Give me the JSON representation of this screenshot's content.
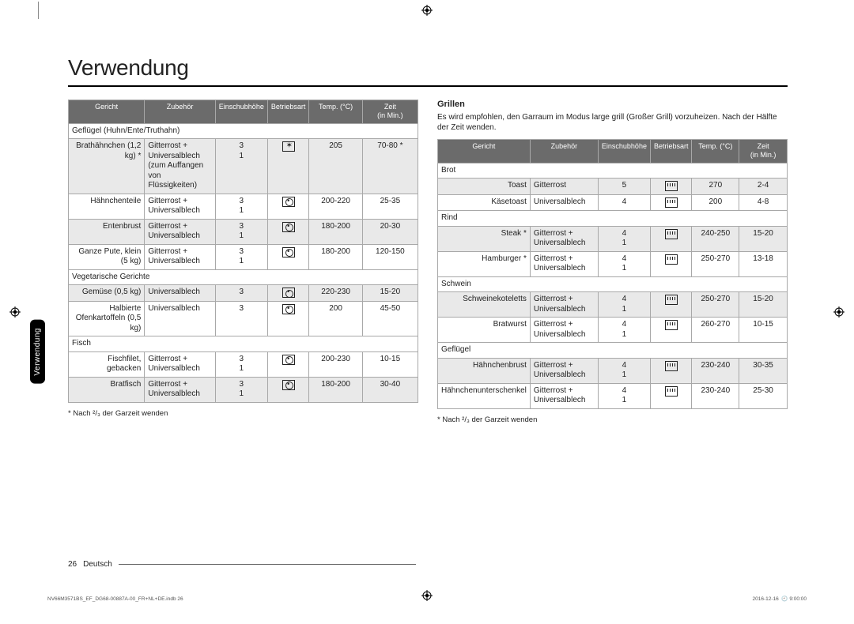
{
  "title": "Verwendung",
  "side_tab": "Verwendung",
  "page_num": "26",
  "page_lang": "Deutsch",
  "print_left": "NV66M3571BS_EF_DG68-00887A-00_FR+NL+DE.indb   26",
  "print_right_date": "2016-12-16",
  "print_right_time": "9:00:00",
  "footnote": "* Nach ²/₃ der Garzeit wenden",
  "headers": {
    "dish": "Gericht",
    "acc": "Zubehör",
    "level": "Einschubhöhe",
    "mode": "Betriebsart",
    "temp": "Temp. (°C)",
    "time": "Zeit",
    "time2": "(in Min.)"
  },
  "left": {
    "sections": [
      {
        "label": "Geflügel (Huhn/Ente/Truthahn)",
        "rows": [
          {
            "alt": true,
            "dish": "Brathähnchen (1,2 kg) *",
            "acc": "Gitterrost + Universalblech (zum Auffangen von Flüssigkeiten)",
            "lvl": "3\n1",
            "mode": "special",
            "temp": "205",
            "time": "70-80 *"
          },
          {
            "alt": false,
            "dish": "Hähnchenteile",
            "acc": "Gitterrost + Universalblech",
            "lvl": "3\n1",
            "mode": "fan",
            "temp": "200-220",
            "time": "25-35"
          },
          {
            "alt": true,
            "dish": "Entenbrust",
            "acc": "Gitterrost + Universalblech",
            "lvl": "3\n1",
            "mode": "fan",
            "temp": "180-200",
            "time": "20-30"
          },
          {
            "alt": false,
            "dish": "Ganze Pute, klein (5 kg)",
            "acc": "Gitterrost + Universalblech",
            "lvl": "3\n1",
            "mode": "fan",
            "temp": "180-200",
            "time": "120-150"
          }
        ]
      },
      {
        "label": "Vegetarische Gerichte",
        "rows": [
          {
            "alt": true,
            "dish": "Gemüse (0,5 kg)",
            "acc": "Universalblech",
            "lvl": "3",
            "mode": "fan",
            "temp": "220-230",
            "time": "15-20"
          },
          {
            "alt": false,
            "dish": "Halbierte Ofenkartoffeln (0,5 kg)",
            "acc": "Universalblech",
            "lvl": "3",
            "mode": "fan",
            "temp": "200",
            "time": "45-50"
          }
        ]
      },
      {
        "label": "Fisch",
        "rows": [
          {
            "alt": false,
            "dish": "Fischfilet, gebacken",
            "acc": "Gitterrost + Universalblech",
            "lvl": "3\n1",
            "mode": "fan",
            "temp": "200-230",
            "time": "10-15"
          },
          {
            "alt": true,
            "dish": "Bratfisch",
            "acc": "Gitterrost + Universalblech",
            "lvl": "3\n1",
            "mode": "fan",
            "temp": "180-200",
            "time": "30-40"
          }
        ]
      }
    ]
  },
  "right": {
    "heading": "Grillen",
    "intro": "Es wird empfohlen, den Garraum im Modus large grill (Großer Grill) vorzuheizen. Nach der Hälfte der Zeit wenden.",
    "sections": [
      {
        "label": "Brot",
        "rows": [
          {
            "alt": true,
            "dish": "Toast",
            "acc": "Gitterrost",
            "lvl": "5",
            "mode": "grill",
            "temp": "270",
            "time": "2-4"
          },
          {
            "alt": false,
            "dish": "Käsetoast",
            "acc": "Universalblech",
            "lvl": "4",
            "mode": "grill",
            "temp": "200",
            "time": "4-8"
          }
        ]
      },
      {
        "label": "Rind",
        "rows": [
          {
            "alt": true,
            "dish": "Steak *",
            "acc": "Gitterrost + Universalblech",
            "lvl": "4\n1",
            "mode": "grill",
            "temp": "240-250",
            "time": "15-20"
          },
          {
            "alt": false,
            "dish": "Hamburger *",
            "acc": "Gitterrost + Universalblech",
            "lvl": "4\n1",
            "mode": "grill",
            "temp": "250-270",
            "time": "13-18"
          }
        ]
      },
      {
        "label": "Schwein",
        "rows": [
          {
            "alt": true,
            "dish": "Schweinekoteletts",
            "acc": "Gitterrost + Universalblech",
            "lvl": "4\n1",
            "mode": "grill",
            "temp": "250-270",
            "time": "15-20"
          },
          {
            "alt": false,
            "dish": "Bratwurst",
            "acc": "Gitterrost + Universalblech",
            "lvl": "4\n1",
            "mode": "grill",
            "temp": "260-270",
            "time": "10-15"
          }
        ]
      },
      {
        "label": "Geflügel",
        "rows": [
          {
            "alt": true,
            "dish": "Hähnchenbrust",
            "acc": "Gitterrost + Universalblech",
            "lvl": "4\n1",
            "mode": "grill",
            "temp": "230-240",
            "time": "30-35"
          },
          {
            "alt": false,
            "dish": "Hähnchenunterschenkel",
            "acc": "Gitterrost + Universalblech",
            "lvl": "4\n1",
            "mode": "grill",
            "temp": "230-240",
            "time": "25-30"
          }
        ]
      }
    ]
  }
}
